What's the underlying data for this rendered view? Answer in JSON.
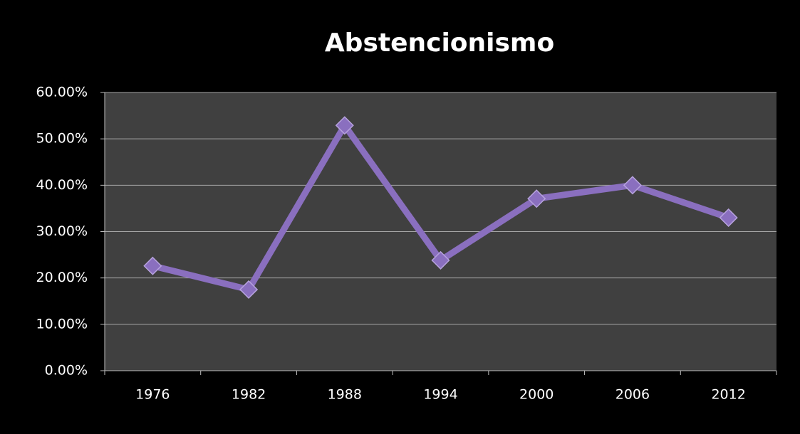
{
  "chart_data": {
    "type": "line",
    "title": "Abstencionismo",
    "categories": [
      "1976",
      "1982",
      "1988",
      "1994",
      "2000",
      "2006",
      "2012"
    ],
    "series": [
      {
        "name": "Abstencionismo",
        "color": "#8a6fbf",
        "values": [
          22.6,
          17.5,
          52.9,
          23.8,
          37.1,
          40.0,
          33.0
        ]
      }
    ],
    "ylim": [
      0,
      60
    ],
    "yticks": [
      {
        "value": 0,
        "label": "0.00%"
      },
      {
        "value": 10,
        "label": "10.00%"
      },
      {
        "value": 20,
        "label": "20.00%"
      },
      {
        "value": 30,
        "label": "30.00%"
      },
      {
        "value": 40,
        "label": "40.00%"
      },
      {
        "value": 50,
        "label": "50.00%"
      },
      {
        "value": 60,
        "label": "60.00%"
      }
    ],
    "grid": true
  }
}
